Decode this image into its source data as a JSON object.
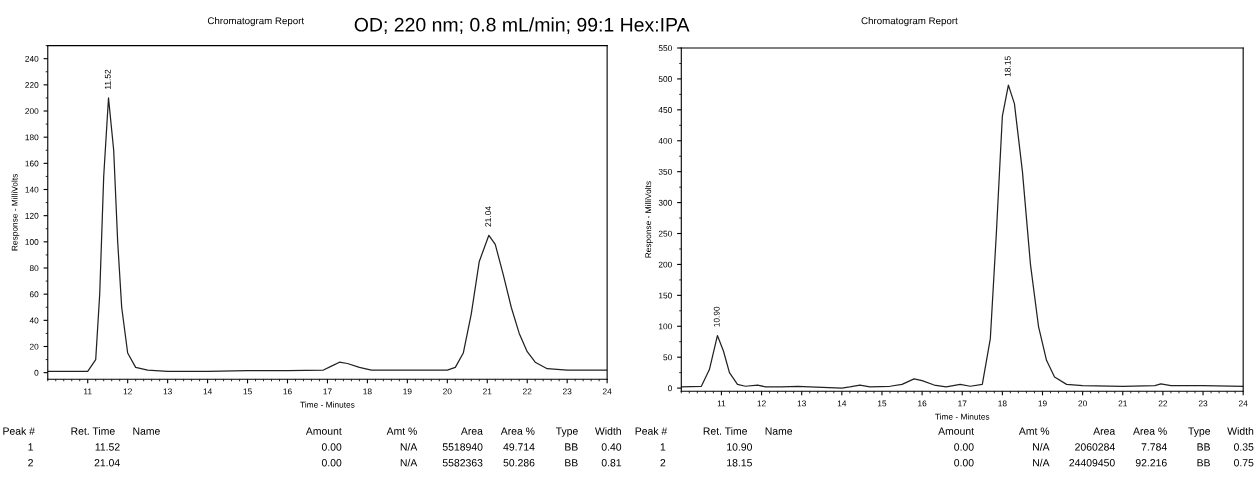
{
  "chart_data": [
    {
      "type": "line",
      "title": "OD; 220 nm; 0.8 mL/min; 99:1 Hex:IPA",
      "subtitle": "Chromatogram Report",
      "xlabel": "Time - Minutes",
      "ylabel": "Response - MilliVolts",
      "xlim": [
        10,
        24
      ],
      "xticks": [
        11,
        12,
        13,
        14,
        15,
        16,
        17,
        18,
        19,
        20,
        21,
        22,
        23,
        24
      ],
      "ylim": [
        -5,
        250
      ],
      "yticks": [
        0,
        20,
        40,
        60,
        80,
        100,
        120,
        140,
        160,
        180,
        200,
        220,
        240
      ],
      "grid": false,
      "legend": false,
      "series": [
        {
          "color": "#222222",
          "x": [
            10.0,
            11.0,
            11.2,
            11.3,
            11.4,
            11.52,
            11.65,
            11.75,
            11.85,
            12.0,
            12.2,
            12.5,
            13.0,
            14.0,
            15.0,
            16.0,
            16.9,
            17.1,
            17.3,
            17.5,
            17.8,
            18.1,
            19.0,
            20.0,
            20.2,
            20.4,
            20.6,
            20.8,
            21.04,
            21.2,
            21.4,
            21.6,
            21.8,
            22.0,
            22.2,
            22.5,
            23.0,
            24.0
          ],
          "values": [
            1,
            1,
            10,
            60,
            150,
            210,
            170,
            100,
            50,
            15,
            4,
            2,
            1,
            1,
            1.5,
            1.5,
            2,
            5,
            8,
            7,
            4,
            2,
            2,
            2,
            4,
            15,
            45,
            85,
            105,
            98,
            75,
            50,
            30,
            16,
            8,
            3,
            2,
            2
          ]
        }
      ],
      "annotations": [
        {
          "text": "11.52",
          "x": 11.52,
          "y": 210
        },
        {
          "text": "21.04",
          "x": 21.04,
          "y": 105
        },
        "Peak #",
        "Ret. Time",
        "Name",
        "Amount",
        "Amt %",
        "Area",
        "Area %",
        "Type",
        "Width",
        "1",
        "11.52",
        "0.00",
        "N/A",
        "5518940",
        "49.714",
        "BB",
        "0.40",
        "2",
        "21.04",
        "0.00",
        "N/A",
        "5582363",
        "50.286",
        "BB",
        "0.81"
      ]
    },
    {
      "type": "line",
      "subtitle": "Chromatogram Report",
      "xlabel": "Time - Minutes",
      "ylabel": "Response - MilliVolts",
      "xlim": [
        10,
        24
      ],
      "xticks": [
        11,
        12,
        13,
        14,
        15,
        16,
        17,
        18,
        19,
        20,
        21,
        22,
        23,
        24
      ],
      "ylim": [
        -5,
        550
      ],
      "yticks": [
        0,
        50,
        100,
        150,
        200,
        250,
        300,
        350,
        400,
        450,
        500,
        550
      ],
      "grid": false,
      "legend": false,
      "series": [
        {
          "color": "#222222",
          "x": [
            10.0,
            10.5,
            10.7,
            10.9,
            11.05,
            11.2,
            11.4,
            11.6,
            11.9,
            12.1,
            12.5,
            12.9,
            13.2,
            14.0,
            14.2,
            14.45,
            14.7,
            15.2,
            15.5,
            15.8,
            16.0,
            16.3,
            16.6,
            16.95,
            17.2,
            17.5,
            17.7,
            17.85,
            18.0,
            18.15,
            18.3,
            18.5,
            18.7,
            18.9,
            19.1,
            19.3,
            19.6,
            20.0,
            21.0,
            21.8,
            21.95,
            22.2,
            23.0,
            24.0
          ],
          "values": [
            2,
            3,
            30,
            85,
            60,
            25,
            6,
            3,
            5,
            2,
            2,
            3,
            2,
            0,
            2,
            5,
            2,
            3,
            6,
            15,
            12,
            5,
            2,
            6,
            3,
            6,
            80,
            250,
            440,
            490,
            460,
            350,
            200,
            100,
            45,
            18,
            6,
            4,
            3,
            4,
            7,
            4,
            4,
            3
          ]
        }
      ],
      "annotations": [
        {
          "text": "10.90",
          "x": 10.9,
          "y": 85
        },
        {
          "text": "18.15",
          "x": 18.15,
          "y": 490
        },
        "Peak #",
        "Ret. Time",
        "Name",
        "Amount",
        "Amt %",
        "Area",
        "Area %",
        "Type",
        "Width",
        "1",
        "10.90",
        "0.00",
        "N/A",
        "2060284",
        "7.784",
        "BB",
        "0.35",
        "2",
        "18.15",
        "0.00",
        "N/A",
        "24409450",
        "92.216",
        "BB",
        "0.75"
      ]
    }
  ]
}
